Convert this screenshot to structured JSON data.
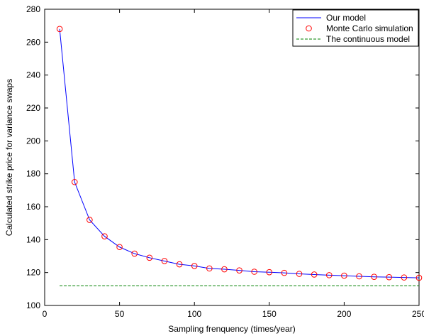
{
  "chart_data": {
    "type": "line",
    "title": "",
    "xlabel": "Sampling frenquency (times/year)",
    "ylabel": "Calculated strike price for variance swaps",
    "xlim": [
      0,
      250
    ],
    "ylim": [
      100,
      280
    ],
    "xticks": [
      0,
      50,
      100,
      150,
      200,
      250
    ],
    "yticks": [
      100,
      120,
      140,
      160,
      180,
      200,
      220,
      240,
      260,
      280
    ],
    "grid": false,
    "legend_position": "top-right",
    "series": [
      {
        "name": "Our model",
        "style": "line",
        "color": "#0000ff",
        "x": [
          10,
          20,
          30,
          40,
          50,
          60,
          70,
          80,
          90,
          100,
          110,
          120,
          130,
          140,
          150,
          160,
          170,
          180,
          190,
          200,
          210,
          220,
          230,
          240,
          250
        ],
        "y": [
          268,
          175,
          152,
          142,
          135.5,
          131.5,
          129,
          127,
          125,
          124,
          122.5,
          122,
          121.3,
          120.5,
          120.2,
          119.8,
          119.2,
          118.8,
          118.4,
          118.1,
          117.7,
          117.4,
          117.2,
          117,
          116.8
        ]
      },
      {
        "name": "Monte Carlo simulation",
        "style": "markers",
        "color": "#ff0000",
        "x": [
          10,
          20,
          30,
          40,
          50,
          60,
          70,
          80,
          90,
          100,
          110,
          120,
          130,
          140,
          150,
          160,
          170,
          180,
          190,
          200,
          210,
          220,
          230,
          240,
          250
        ],
        "y": [
          268,
          175,
          152,
          142,
          135.5,
          131.5,
          129,
          127,
          125,
          124,
          122.5,
          122,
          121.3,
          120.5,
          120.2,
          119.8,
          119.2,
          118.8,
          118.4,
          118.1,
          117.7,
          117.4,
          117.2,
          117,
          116.8
        ]
      },
      {
        "name": "The continuous model",
        "style": "dashed",
        "color": "#008000",
        "x": [
          10,
          250
        ],
        "y": [
          112,
          112
        ]
      }
    ]
  }
}
